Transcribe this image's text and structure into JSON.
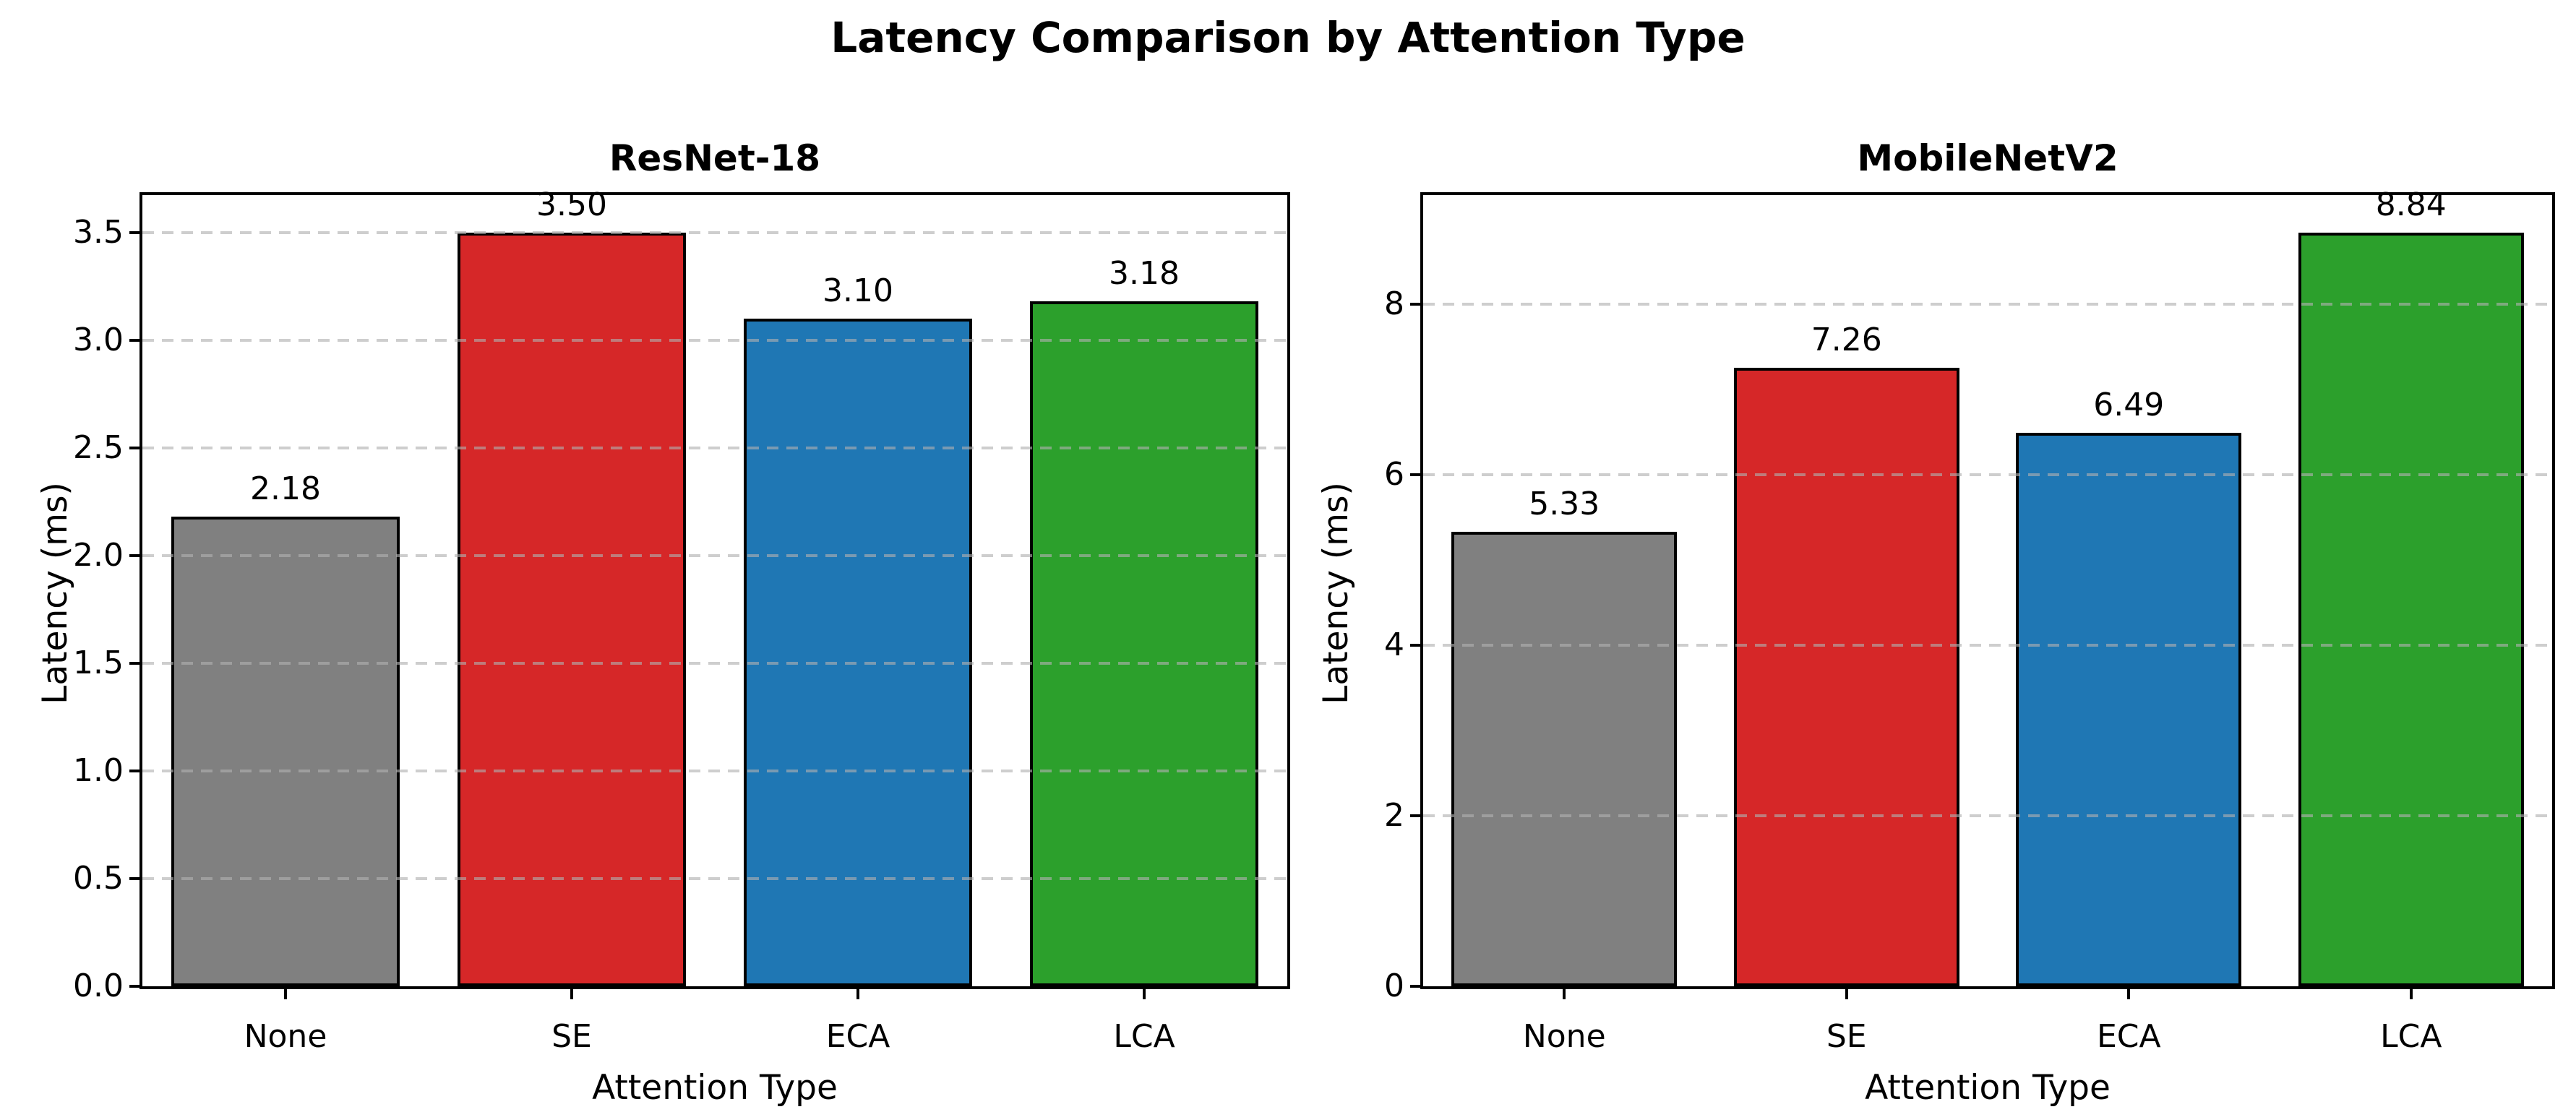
{
  "suptitle": "Latency Comparison by Attention Type",
  "chart_data": [
    {
      "type": "bar",
      "title": "ResNet-18",
      "xlabel": "Attention Type",
      "ylabel": "Latency (ms)",
      "categories": [
        "None",
        "SE",
        "ECA",
        "LCA"
      ],
      "values": [
        2.18,
        3.5,
        3.1,
        3.18
      ],
      "value_labels": [
        "2.18",
        "3.50",
        "3.10",
        "3.18"
      ],
      "bar_colors": [
        "#808080",
        "#d62728",
        "#1f77b4",
        "#2ca02c"
      ],
      "bar_edge_color": "#000000",
      "ylim": [
        0,
        3.675
      ],
      "ytick_values": [
        0,
        0.5,
        1,
        1.5,
        2,
        2.5,
        3,
        3.5
      ],
      "ytick_labels": [
        "0.0",
        "0.5",
        "1.0",
        "1.5",
        "2.0",
        "2.5",
        "3.0",
        "3.5"
      ],
      "bar_width_fraction": 0.8,
      "grid": {
        "axis": "y",
        "linestyle": "dashed",
        "color": "#b0b0b0",
        "alpha": 0.6,
        "position": "above-bars"
      }
    },
    {
      "type": "bar",
      "title": "MobileNetV2",
      "xlabel": "Attention Type",
      "ylabel": "Latency (ms)",
      "categories": [
        "None",
        "SE",
        "ECA",
        "LCA"
      ],
      "values": [
        5.33,
        7.26,
        6.49,
        8.84
      ],
      "value_labels": [
        "5.33",
        "7.26",
        "6.49",
        "8.84"
      ],
      "bar_colors": [
        "#808080",
        "#d62728",
        "#1f77b4",
        "#2ca02c"
      ],
      "bar_edge_color": "#000000",
      "ylim": [
        0,
        9.282
      ],
      "ytick_values": [
        0,
        2,
        4,
        6,
        8
      ],
      "ytick_labels": [
        "0",
        "2",
        "4",
        "6",
        "8"
      ],
      "bar_width_fraction": 0.8,
      "grid": {
        "axis": "y",
        "linestyle": "dashed",
        "color": "#b0b0b0",
        "alpha": 0.6,
        "position": "above-bars"
      }
    }
  ]
}
